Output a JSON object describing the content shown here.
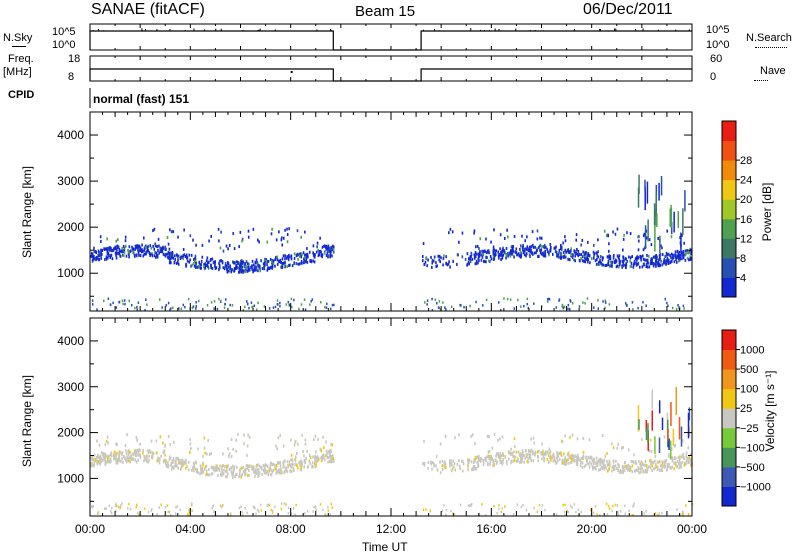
{
  "header": {
    "title": "SANAE (fitACF)",
    "beam": "Beam 15",
    "date": "06/Dec/2011"
  },
  "panels": {
    "nsky": {
      "label": "N.Sky",
      "right_label": "N.Search",
      "left_ticks": [
        "10^5",
        "10^0"
      ],
      "right_ticks": [
        "10^5",
        "10^0"
      ]
    },
    "freq": {
      "label": "Freq.",
      "unit": "[MHz]",
      "right_label": "Nave",
      "left_ticks": [
        "18",
        "8"
      ],
      "right_ticks": [
        "60",
        "0"
      ]
    },
    "cpid": {
      "label": "CPID",
      "value": "normal (fast) 151"
    }
  },
  "chart_data": [
    {
      "type": "heatmap",
      "title": "",
      "quantity": "Power",
      "ylabel": "Slant Range [km]",
      "xlabel": "Time UT",
      "ylim": [
        180,
        4500
      ],
      "yticks": [
        1000,
        2000,
        3000,
        4000
      ],
      "xlim": [
        0,
        24
      ],
      "xticks": [
        "00:00",
        "04:00",
        "08:00",
        "12:00",
        "16:00",
        "20:00",
        "00:00"
      ],
      "colorbar": {
        "label": "Power [dB]",
        "ticks": [
          "4",
          "8",
          "12",
          "16",
          "20",
          "24",
          "28"
        ],
        "colors": [
          "#1428d2",
          "#2850b4",
          "#3c7864",
          "#50a050",
          "#a0c828",
          "#f0c814",
          "#f08c0a",
          "#f05014",
          "#e81e14"
        ]
      },
      "gaps_hours": [
        [
          9.7,
          13.2
        ]
      ],
      "echo_band": {
        "center_km": 1400,
        "extent_km": [
          1100,
          2000
        ]
      }
    },
    {
      "type": "heatmap",
      "title": "",
      "quantity": "Velocity",
      "ylabel": "Slant Range [km]",
      "xlabel": "Time UT",
      "ylim": [
        180,
        4500
      ],
      "yticks": [
        1000,
        2000,
        3000,
        4000
      ],
      "xlim": [
        0,
        24
      ],
      "xticks": [
        "00:00",
        "04:00",
        "08:00",
        "12:00",
        "16:00",
        "20:00",
        "00:00"
      ],
      "colorbar": {
        "label": "Velocity [m s⁻¹]",
        "ticks": [
          "1000",
          "500",
          "100",
          "25",
          "−25",
          "−100",
          "−500",
          "−1000"
        ],
        "colors": [
          "#1428d2",
          "#3c5ab4",
          "#46965a",
          "#78c83c",
          "#c8c8c0",
          "#f0c814",
          "#f0961e",
          "#f05a14",
          "#e81e14"
        ]
      },
      "gaps_hours": [
        [
          9.7,
          13.2
        ]
      ],
      "echo_band": {
        "center_km": 1400,
        "extent_km": [
          1100,
          2000
        ]
      }
    }
  ]
}
